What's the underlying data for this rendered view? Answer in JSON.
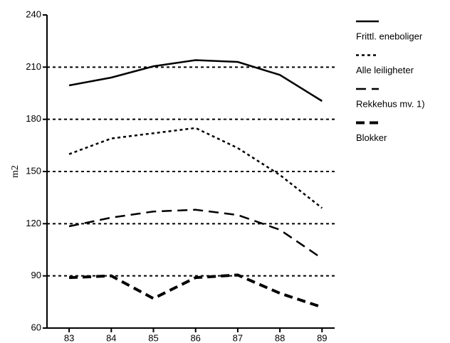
{
  "chart_data": {
    "type": "line",
    "y_label": "m2",
    "categories": [
      "83",
      "84",
      "85",
      "86",
      "87",
      "88",
      "89"
    ],
    "series": [
      {
        "name": "Frittl. eneboliger",
        "color": "#000000",
        "dash": "solid",
        "values": [
          199.5,
          204,
          210.5,
          214,
          213,
          205.5,
          190.5
        ]
      },
      {
        "name": "Alle leiligheter",
        "color": "#000000",
        "dash": "dotted",
        "values": [
          160,
          169,
          172,
          175,
          163.5,
          148,
          129
        ]
      },
      {
        "name": "Rekkehus mv. 1)",
        "color": "#000000",
        "dash": "dashed",
        "values": [
          118.5,
          123.5,
          127,
          128,
          125,
          116.5,
          100
        ]
      },
      {
        "name": "Blokker",
        "color": "#000000",
        "dash": "heavy-dashed",
        "values": [
          89,
          90,
          77,
          89,
          90.5,
          80,
          72
        ]
      }
    ],
    "ylim": [
      60,
      240
    ],
    "yticks": [
      60,
      90,
      120,
      150,
      180,
      210,
      240
    ],
    "grid": true,
    "legend": "right"
  }
}
